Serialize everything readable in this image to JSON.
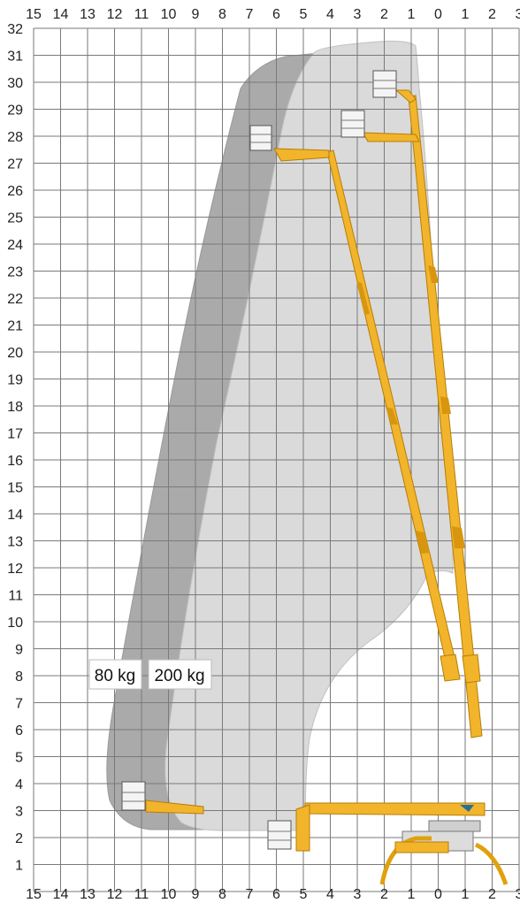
{
  "chart_data": {
    "type": "diagram",
    "x_ticks_top": [
      "15",
      "14",
      "13",
      "12",
      "11",
      "10",
      "9",
      "8",
      "7",
      "6",
      "5",
      "4",
      "3",
      "2",
      "1",
      "0",
      "1",
      "2",
      "3"
    ],
    "x_ticks_bottom": [
      "15",
      "14",
      "13",
      "12",
      "11",
      "10",
      "9",
      "8",
      "7",
      "6",
      "5",
      "4",
      "3",
      "2",
      "1",
      "0",
      "1",
      "2",
      "3"
    ],
    "y_ticks": [
      "32",
      "31",
      "30",
      "29",
      "28",
      "27",
      "26",
      "25",
      "24",
      "23",
      "22",
      "21",
      "20",
      "19",
      "18",
      "17",
      "16",
      "15",
      "14",
      "13",
      "12",
      "11",
      "10",
      "9",
      "8",
      "7",
      "6",
      "5",
      "4",
      "3",
      "2",
      "1"
    ],
    "zones": [
      {
        "label": "80 kg",
        "color": "#a9a9a9"
      },
      {
        "label": "200 kg",
        "color": "#d9d9d9"
      }
    ],
    "colors": {
      "boom": "#f2b42a",
      "boom_dark": "#c98a0a",
      "grid": "#7a7a7a",
      "background": "#ffffff"
    }
  }
}
